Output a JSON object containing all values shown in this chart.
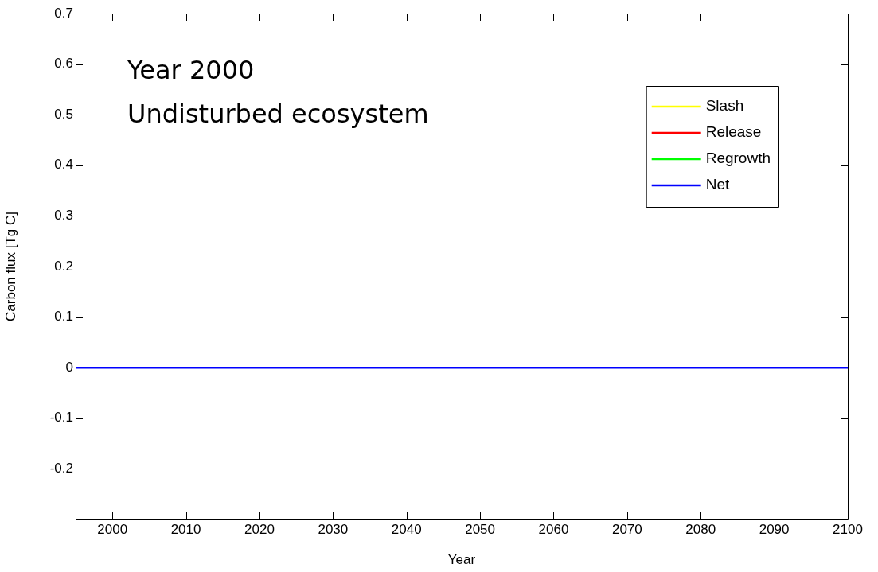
{
  "chart_data": {
    "type": "line",
    "xlabel": "Year",
    "ylabel": "Carbon flux [Tg C]",
    "annotations": [
      "Year 2000",
      "Undisturbed ecosystem"
    ],
    "x": [
      1995,
      2100
    ],
    "series": [
      {
        "name": "Slash",
        "color": "#ffff00",
        "values": [
          null,
          null
        ]
      },
      {
        "name": "Release",
        "color": "#ff0000",
        "values": [
          null,
          null
        ]
      },
      {
        "name": "Regrowth",
        "color": "#00ff00",
        "values": [
          null,
          null
        ]
      },
      {
        "name": "Net",
        "color": "#0000ff",
        "values": [
          0,
          0
        ]
      }
    ],
    "xlim": [
      1995,
      2100
    ],
    "xticks": [
      2000,
      2010,
      2020,
      2030,
      2040,
      2050,
      2060,
      2070,
      2080,
      2090,
      2100
    ],
    "ylim": [
      -0.3,
      0.7
    ],
    "yticks": [
      -0.2,
      -0.1,
      0,
      0.1,
      0.2,
      0.3,
      0.4,
      0.5,
      0.6,
      0.7
    ],
    "grid": false,
    "legend": "top right",
    "marker": "none",
    "line_style": "solid"
  }
}
